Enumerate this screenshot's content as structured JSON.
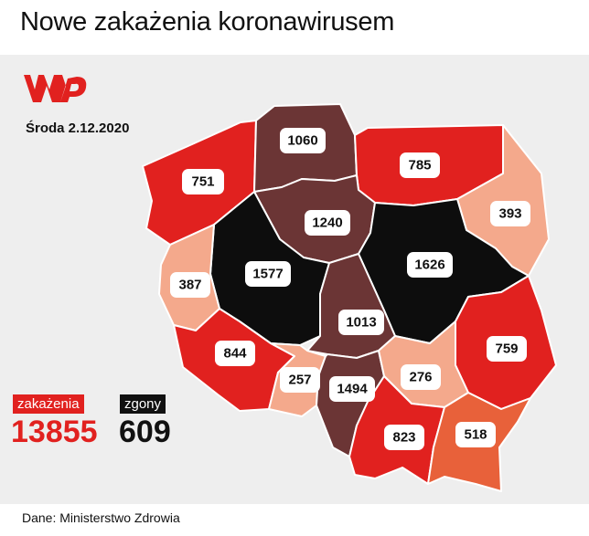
{
  "title": "Nowe zakażenia koronawirusem",
  "date": "Środa 2.12.2020",
  "logo": {
    "text": "WP",
    "color": "#e1211f"
  },
  "legend": {
    "infections_label": "zakażenia",
    "infections_value": "13855",
    "deaths_label": "zgony",
    "deaths_value": "609"
  },
  "source": "Dane: Ministerstwo Zdrowia",
  "colors": {
    "black": "#0d0d0d",
    "dark_brown": "#6b3535",
    "red": "#e1211f",
    "light_salmon": "#f4a98c",
    "orange": "#e8613a"
  },
  "regions": [
    {
      "name": "zachodniopomorskie",
      "value": "751",
      "color": "#e1211f"
    },
    {
      "name": "pomorskie",
      "value": "1060",
      "color": "#6b3535"
    },
    {
      "name": "warmińsko-mazurskie",
      "value": "785",
      "color": "#e1211f"
    },
    {
      "name": "podlaskie",
      "value": "393",
      "color": "#f4a98c"
    },
    {
      "name": "kujawsko-pomorskie",
      "value": "1240",
      "color": "#6b3535"
    },
    {
      "name": "wielkopolskie",
      "value": "1577",
      "color": "#0d0d0d"
    },
    {
      "name": "mazowieckie",
      "value": "1626",
      "color": "#0d0d0d"
    },
    {
      "name": "lubuskie",
      "value": "387",
      "color": "#f4a98c"
    },
    {
      "name": "łódzkie",
      "value": "1013",
      "color": "#6b3535"
    },
    {
      "name": "lubelskie",
      "value": "759",
      "color": "#e1211f"
    },
    {
      "name": "dolnośląskie",
      "value": "844",
      "color": "#e1211f"
    },
    {
      "name": "opolskie",
      "value": "257",
      "color": "#f4a98c"
    },
    {
      "name": "śląskie",
      "value": "1494",
      "color": "#6b3535"
    },
    {
      "name": "świętokrzyskie",
      "value": "276",
      "color": "#f4a98c"
    },
    {
      "name": "małopolskie",
      "value": "823",
      "color": "#e1211f"
    },
    {
      "name": "podkarpackie",
      "value": "518",
      "color": "#e8613a"
    }
  ]
}
